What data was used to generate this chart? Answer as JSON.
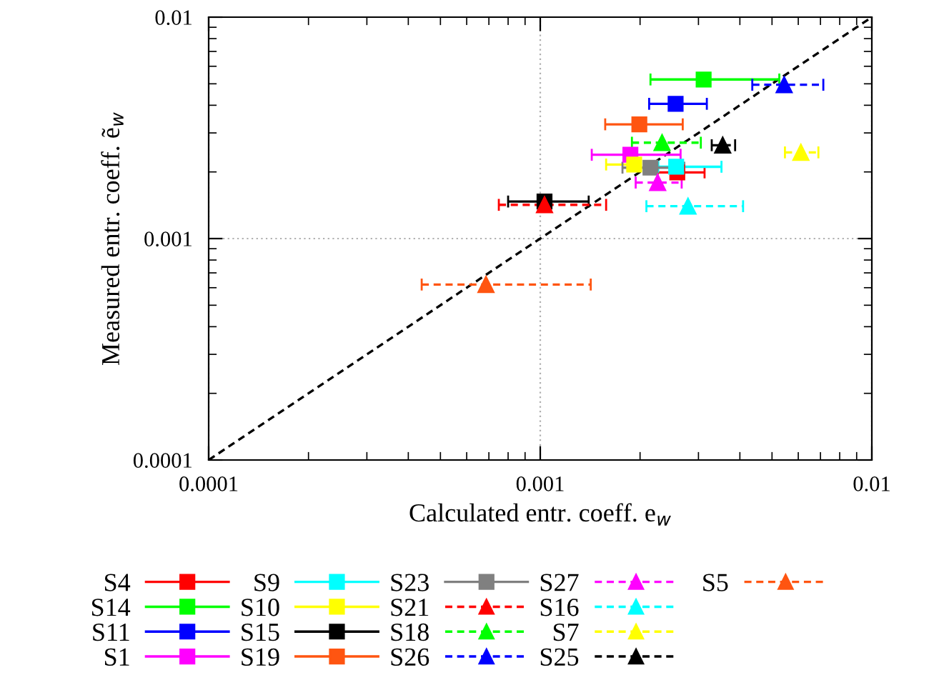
{
  "chart_data": {
    "type": "scatter",
    "xlabel": "Calculated entr. coeff. e$_{w}$",
    "ylabel": "Measured entr. coeff. ẽ$_{w}$",
    "log": "xy",
    "xlim": [
      0.0001,
      0.01
    ],
    "ylim": [
      0.0001,
      0.01
    ],
    "xticks": [
      0.0001,
      0.001,
      0.01
    ],
    "yticks": [
      0.0001,
      0.001,
      0.01
    ],
    "grid": true,
    "legend": "bottom",
    "series": [
      {
        "name": "S4",
        "color": "#ff0000",
        "marker": "square",
        "line_style": "solid",
        "x": [
          0.00259
        ],
        "values": [
          0.00199
        ],
        "xerrors": [
          [
            0.00226,
            0.00313
          ]
        ]
      },
      {
        "name": "S14",
        "color": "#00ff00",
        "marker": "square",
        "line_style": "solid",
        "x": [
          0.00311
        ],
        "values": [
          0.00523
        ],
        "xerrors": [
          [
            0.00215,
            0.00526
          ]
        ]
      },
      {
        "name": "S11",
        "color": "#0000ff",
        "marker": "square",
        "line_style": "solid",
        "x": [
          0.00256
        ],
        "values": [
          0.00406
        ],
        "xerrors": [
          [
            0.00213,
            0.00318
          ]
        ]
      },
      {
        "name": "S1",
        "color": "#ff00ff",
        "marker": "square",
        "line_style": "solid",
        "x": [
          0.00187
        ],
        "values": [
          0.00239
        ],
        "xerrors": [
          [
            0.00143,
            0.00265
          ]
        ]
      },
      {
        "name": "S9",
        "color": "#00ffff",
        "marker": "square",
        "line_style": "solid",
        "x": [
          0.00257
        ],
        "values": [
          0.00211
        ],
        "xerrors": [
          [
            0.00227,
            0.00352
          ]
        ]
      },
      {
        "name": "S10",
        "color": "#ffff00",
        "marker": "square",
        "line_style": "solid",
        "x": [
          0.00192
        ],
        "values": [
          0.00216
        ],
        "xerrors": [
          [
            0.00158,
            0.00192
          ]
        ]
      },
      {
        "name": "S15",
        "color": "#000000",
        "marker": "square",
        "line_style": "solid",
        "x": [
          0.00103
        ],
        "values": [
          0.00147
        ],
        "xerrors": [
          [
            0.0008,
            0.0014
          ]
        ]
      },
      {
        "name": "S19",
        "color": "#ff5511",
        "marker": "square",
        "line_style": "solid",
        "x": [
          0.00199
        ],
        "values": [
          0.00328
        ],
        "xerrors": [
          [
            0.00157,
            0.00269
          ]
        ]
      },
      {
        "name": "S23",
        "color": "#808080",
        "marker": "square",
        "line_style": "solid",
        "x": [
          0.00215
        ],
        "values": [
          0.00209
        ],
        "xerrors": [
          [
            0.00177,
            0.00272
          ]
        ]
      },
      {
        "name": "S21",
        "color": "#ff0000",
        "marker": "triangle",
        "line_style": "dashed",
        "x": [
          0.00103
        ],
        "values": [
          0.00142
        ],
        "xerrors": [
          [
            0.00075,
            0.00158
          ]
        ]
      },
      {
        "name": "S18",
        "color": "#00ff00",
        "marker": "triangle",
        "line_style": "dashed",
        "x": [
          0.00233
        ],
        "values": [
          0.00271
        ],
        "xerrors": [
          [
            0.00189,
            0.00305
          ]
        ]
      },
      {
        "name": "S26",
        "color": "#0000ff",
        "marker": "triangle",
        "line_style": "dashed",
        "x": [
          0.00544
        ],
        "values": [
          0.00495
        ],
        "xerrors": [
          [
            0.00436,
            0.00714
          ]
        ]
      },
      {
        "name": "S27",
        "color": "#ff00ff",
        "marker": "triangle",
        "line_style": "dashed",
        "x": [
          0.00226
        ],
        "values": [
          0.00179
        ],
        "xerrors": [
          [
            0.00194,
            0.00267
          ]
        ]
      },
      {
        "name": "S16",
        "color": "#00ffff",
        "marker": "triangle",
        "line_style": "dashed",
        "x": [
          0.00279
        ],
        "values": [
          0.0014
        ],
        "xerrors": [
          [
            0.00209,
            0.00409
          ]
        ]
      },
      {
        "name": "S7",
        "color": "#ffff00",
        "marker": "triangle",
        "line_style": "dashed",
        "x": [
          0.00611
        ],
        "values": [
          0.00245
        ],
        "xerrors": [
          [
            0.00547,
            0.0069
          ]
        ]
      },
      {
        "name": "S25",
        "color": "#000000",
        "marker": "triangle",
        "line_style": "dashed",
        "x": [
          0.00355
        ],
        "values": [
          0.00264
        ],
        "xerrors": [
          [
            0.00329,
            0.00387
          ]
        ]
      },
      {
        "name": "S5",
        "color": "#ff5511",
        "marker": "triangle",
        "line_style": "dashed",
        "x": [
          0.000686
        ],
        "values": [
          0.00062
        ],
        "xerrors": [
          [
            0.000439,
            0.00142
          ]
        ]
      },
      {
        "type": "line",
        "color": "#000000",
        "line_style": "dashed",
        "marker": "none",
        "x": [
          0.0001,
          0.01
        ],
        "values": [
          0.0001,
          0.01
        ]
      }
    ]
  }
}
